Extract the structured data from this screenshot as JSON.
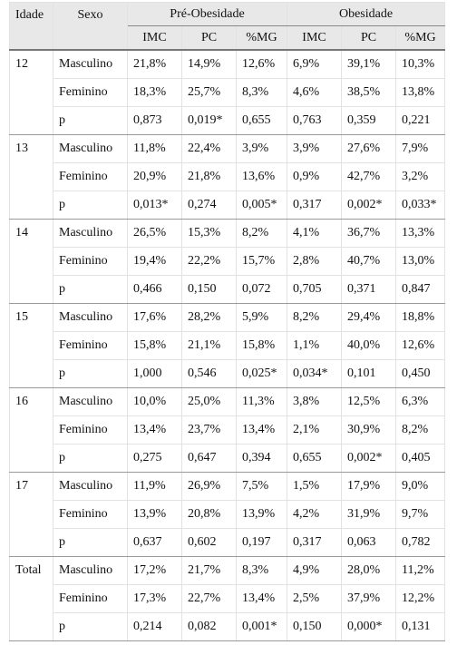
{
  "table": {
    "header": {
      "idade": "Idade",
      "sexo": "Sexo",
      "groups": [
        "Pré-Obesidade",
        "Obesidade"
      ],
      "columns": [
        "IMC",
        "PC",
        "%MG",
        "IMC",
        "PC",
        "%MG"
      ]
    },
    "groups": [
      {
        "age": "12",
        "rows": [
          [
            "Masculino",
            "21,8%",
            "14,9%",
            "12,6%",
            "6,9%",
            "39,1%",
            "10,3%"
          ],
          [
            "Feminino",
            "18,3%",
            "25,7%",
            "8,3%",
            "4,6%",
            "38,5%",
            "13,8%"
          ],
          [
            "p",
            "0,873",
            "0,019*",
            "0,655",
            "0,763",
            "0,359",
            "0,221"
          ]
        ]
      },
      {
        "age": "13",
        "rows": [
          [
            "Masculino",
            "11,8%",
            "22,4%",
            "3,9%",
            "3,9%",
            "27,6%",
            "7,9%"
          ],
          [
            "Feminino",
            "20,9%",
            "21,8%",
            "13,6%",
            "0,9%",
            "42,7%",
            "3,2%"
          ],
          [
            "p",
            "0,013*",
            "0,274",
            "0,005*",
            "0,317",
            "0,002*",
            "0,033*"
          ]
        ]
      },
      {
        "age": "14",
        "rows": [
          [
            "Masculino",
            "26,5%",
            "15,3%",
            "8,2%",
            "4,1%",
            "36,7%",
            "13,3%"
          ],
          [
            "Feminino",
            "19,4%",
            "22,2%",
            "15,7%",
            "2,8%",
            "40,7%",
            "13,0%"
          ],
          [
            "p",
            "0,466",
            "0,150",
            "0,072",
            "0,705",
            "0,371",
            "0,847"
          ]
        ]
      },
      {
        "age": "15",
        "rows": [
          [
            "Masculino",
            "17,6%",
            "28,2%",
            "5,9%",
            "8,2%",
            "29,4%",
            "18,8%"
          ],
          [
            "Feminino",
            "15,8%",
            "21,1%",
            "15,8%",
            "1,1%",
            "40,0%",
            "12,6%"
          ],
          [
            "p",
            "1,000",
            "0,546",
            "0,025*",
            "0,034*",
            "0,101",
            "0,450"
          ]
        ]
      },
      {
        "age": "16",
        "rows": [
          [
            "Masculino",
            "10,0%",
            "25,0%",
            "11,3%",
            "3,8%",
            "12,5%",
            "6,3%"
          ],
          [
            "Feminino",
            "13,4%",
            "23,7%",
            "13,4%",
            "2,1%",
            "30,9%",
            "8,2%"
          ],
          [
            "p",
            "0,275",
            "0,647",
            "0,394",
            "0,655",
            "0,002*",
            "0,405"
          ]
        ]
      },
      {
        "age": "17",
        "rows": [
          [
            "Masculino",
            "11,9%",
            "26,9%",
            "7,5%",
            "1,5%",
            "17,9%",
            "9,0%"
          ],
          [
            "Feminino",
            "13,9%",
            "20,8%",
            "13,9%",
            "4,2%",
            "31,9%",
            "9,7%"
          ],
          [
            "p",
            "0,637",
            "0,602",
            "0,197",
            "0,317",
            "0,063",
            "0,782"
          ]
        ]
      },
      {
        "age": "Total",
        "rows": [
          [
            "Masculino",
            "17,2%",
            "21,7%",
            "8,3%",
            "4,9%",
            "28,0%",
            "11,2%"
          ],
          [
            "Feminino",
            "17,3%",
            "22,7%",
            "13,4%",
            "2,5%",
            "37,9%",
            "12,2%"
          ],
          [
            "p",
            "0,214",
            "0,082",
            "0,001*",
            "0,150",
            "0,000*",
            "0,131"
          ]
        ]
      }
    ]
  }
}
